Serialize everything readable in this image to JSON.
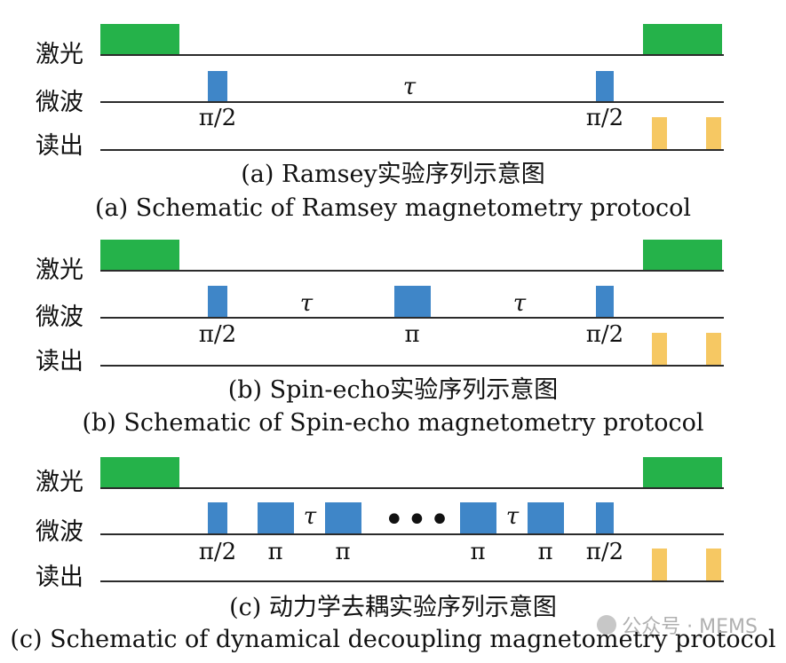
{
  "channels": {
    "laser": "激光",
    "microwave": "微波",
    "readout": "读出"
  },
  "symbols": {
    "half_pi": "π/2",
    "pi": "π",
    "tau": "τ",
    "ellipsis": "•••"
  },
  "panels": [
    {
      "caption_cn": "(a) Ramsey实验序列示意图",
      "caption_en": "(a) Schematic of Ramsey magnetometry protocol"
    },
    {
      "caption_cn": "(b) Spin-echo实验序列示意图",
      "caption_en": "(b) Schematic of Spin-echo magnetometry protocol"
    },
    {
      "caption_cn": "(c) 动力学去耦实验序列示意图",
      "caption_en": "(c) Schematic of dynamical decoupling magnetometry protocol"
    }
  ],
  "watermark": "公众号 · MEMS",
  "colors": {
    "laser": "#25b24a",
    "microwave": "#3f86c8",
    "readout": "#f6c863"
  }
}
